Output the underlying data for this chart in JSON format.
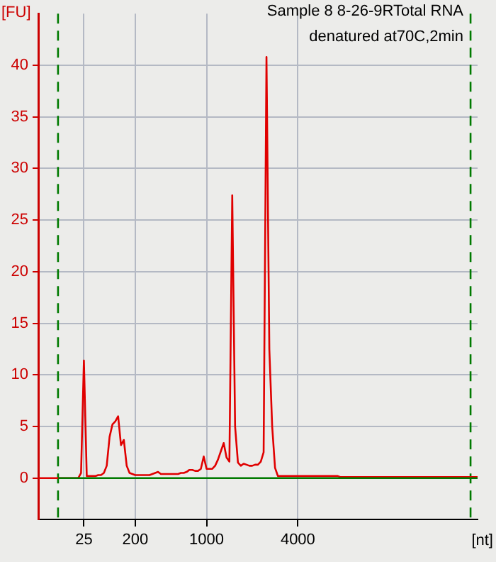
{
  "chart_data": {
    "type": "line",
    "title": "Sample 8 8-26-9RTotal RNA",
    "subtitle": "denatured at70C,2min",
    "xlabel": "[nt]",
    "ylabel": "[FU]",
    "categories": [
      null,
      null,
      null,
      null,
      null,
      null,
      null,
      null,
      null,
      null,
      null,
      null,
      null,
      null,
      null,
      null,
      "25",
      null,
      null,
      null,
      null,
      null,
      null,
      null,
      null,
      null,
      null,
      null,
      null,
      null,
      null,
      null,
      null,
      null,
      "200",
      null,
      null,
      null,
      null,
      null,
      null,
      null,
      null,
      null,
      null,
      null,
      null,
      null,
      null,
      null,
      null,
      null,
      null,
      null,
      null,
      null,
      null,
      null,
      null,
      "1000",
      null,
      null,
      null,
      null,
      null,
      null,
      null,
      null,
      null,
      null,
      null,
      null,
      null,
      null,
      null,
      null,
      null,
      null,
      null,
      null,
      null,
      null,
      null,
      null,
      null,
      null,
      null,
      null,
      null,
      null,
      null,
      "4000",
      null,
      null,
      null,
      null,
      null,
      null,
      null,
      null,
      null,
      null,
      null,
      null,
      null,
      null,
      null,
      null,
      null,
      null,
      null,
      null,
      null,
      null,
      null,
      null,
      null,
      null,
      null,
      null,
      null,
      null,
      null,
      null,
      null,
      null,
      null,
      null,
      null,
      null,
      null,
      null,
      null,
      null,
      null,
      null,
      null,
      null,
      null,
      null,
      null,
      null,
      null,
      null,
      null,
      null,
      null,
      null,
      null,
      null,
      null,
      null,
      null,
      null,
      null
    ],
    "ylim": [
      -4,
      45
    ],
    "yticks": [
      0,
      5,
      10,
      15,
      20,
      25,
      30,
      35,
      40
    ],
    "grid": true,
    "marker": "none",
    "line_style": "solid",
    "series": [
      {
        "color": "#007a00",
        "values": [
          null,
          null,
          null,
          null,
          null,
          null,
          null,
          0,
          0,
          0,
          0,
          0,
          0,
          0,
          0,
          0,
          0,
          0,
          0,
          0,
          0,
          0,
          0,
          0,
          0,
          0,
          0,
          0,
          0,
          0,
          0,
          0,
          0,
          0,
          0,
          0,
          0,
          0,
          0,
          0,
          0,
          0,
          0,
          0,
          0,
          0,
          0,
          0,
          0,
          0,
          0,
          0,
          0,
          0,
          0,
          0,
          0,
          0,
          0,
          0,
          0,
          0,
          0,
          0,
          0,
          0,
          0,
          0,
          0,
          0,
          0,
          0,
          0,
          0,
          0,
          0,
          0,
          0,
          0,
          0,
          0,
          0,
          0,
          0,
          0,
          0,
          0,
          0,
          0,
          0,
          0,
          0,
          0,
          0,
          0,
          0,
          0,
          0,
          0,
          0,
          0,
          0,
          0,
          0,
          0,
          0,
          0,
          0,
          0,
          0,
          0,
          0,
          0,
          0,
          0,
          0,
          0,
          0,
          0,
          0,
          0,
          0,
          0,
          0,
          0,
          0,
          0,
          0,
          0,
          0,
          0,
          0,
          0,
          0,
          0,
          0,
          0,
          0,
          0,
          0,
          0,
          0,
          0,
          0,
          0,
          0,
          0,
          0,
          0,
          0,
          0,
          0,
          0,
          0,
          0
        ]
      },
      {
        "color": "#e00000",
        "values": [
          0,
          0,
          0,
          0,
          0,
          0,
          0,
          0,
          0,
          0,
          0,
          0,
          0,
          0,
          0,
          0.5,
          11.4,
          0.2,
          0.2,
          0.2,
          0.2,
          0.3,
          0.3,
          0.5,
          1.2,
          4,
          5.2,
          5.5,
          6,
          3.2,
          3.7,
          1.2,
          0.5,
          0.4,
          0.3,
          0.3,
          0.3,
          0.3,
          0.3,
          0.3,
          0.4,
          0.5,
          0.6,
          0.4,
          0.4,
          0.4,
          0.4,
          0.4,
          0.4,
          0.4,
          0.5,
          0.5,
          0.6,
          0.8,
          0.8,
          0.7,
          0.7,
          0.9,
          2.1,
          0.9,
          0.9,
          0.9,
          1.2,
          1.8,
          2.6,
          3.4,
          2,
          1.6,
          27.4,
          5,
          1.5,
          1.2,
          1.4,
          1.3,
          1.2,
          1.2,
          1.3,
          1.3,
          1.6,
          2.5,
          40.8,
          12.5,
          5,
          1,
          0.2,
          0.2,
          0.2,
          0.2,
          0.2,
          0.2,
          0.2,
          0.2,
          0.2,
          0.2,
          0.2,
          0.2,
          0.2,
          0.2,
          0.2,
          0.2,
          0.2,
          0.2,
          0.2,
          0.2,
          0.2,
          0.2,
          0.1,
          0.1,
          0.1,
          0.1,
          0.1,
          0.1,
          0.1,
          0.1,
          0.1,
          0.1,
          0.1,
          0.1,
          0.1,
          0.1,
          0.1,
          0.1,
          0.1,
          0.1,
          0.1,
          0.1,
          0.1,
          0.1,
          0.1,
          0.1,
          0.1,
          0.1,
          0.1,
          0.1,
          0.1,
          0.1,
          0.1,
          0.1,
          0.1,
          0.1,
          0.1,
          0.1,
          0.1,
          0.1,
          0.1,
          0.1,
          0.1,
          0.1,
          0.1,
          0.1,
          0.1,
          0.1,
          0.1,
          0.1,
          0.1
        ]
      }
    ]
  }
}
